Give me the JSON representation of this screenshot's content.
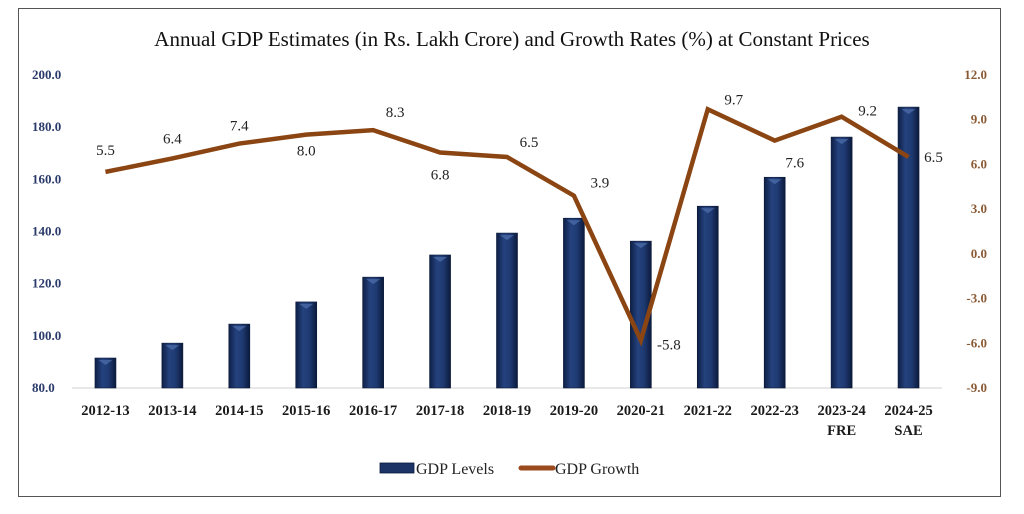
{
  "chart_data": {
    "type": "bar+line",
    "title": "Annual GDP Estimates (in Rs. Lakh Crore) and Growth Rates (%) at Constant Prices",
    "categories": [
      "2012-13",
      "2013-14",
      "2014-15",
      "2015-16",
      "2016-17",
      "2017-18",
      "2018-19",
      "2019-20",
      "2020-21",
      "2021-22",
      "2022-23",
      "2023-24\nFRE",
      "2024-25\nSAE"
    ],
    "series": [
      {
        "name": "GDP Levels",
        "type": "bar",
        "axis": "left",
        "color": "#1c3466",
        "values": [
          91.5,
          97.2,
          104.5,
          113.0,
          122.5,
          131.0,
          139.4,
          145.1,
          136.3,
          149.7,
          160.8,
          176.2,
          187.7
        ]
      },
      {
        "name": "GDP Growth",
        "type": "line",
        "axis": "right",
        "color": "#8b4513",
        "values": [
          5.5,
          6.4,
          7.4,
          8.0,
          8.3,
          6.8,
          6.5,
          3.9,
          -5.8,
          9.7,
          7.6,
          9.2,
          6.5
        ],
        "data_labels": [
          "5.5",
          "6.4",
          "7.4",
          "8.0",
          "8.3",
          "6.8",
          "6.5",
          "3.9",
          "-5.8",
          "9.7",
          "7.6",
          "9.2",
          "6.5"
        ]
      }
    ],
    "left_axis": {
      "ylim": [
        80,
        200
      ],
      "ticks": [
        "80.0",
        "100.0",
        "120.0",
        "140.0",
        "160.0",
        "180.0",
        "200.0"
      ],
      "color": "#2a3a6a"
    },
    "right_axis": {
      "ylim": [
        -9,
        12
      ],
      "ticks": [
        "-9.0",
        "-6.0",
        "-3.0",
        "0.0",
        "3.0",
        "6.0",
        "9.0",
        "12.0"
      ],
      "color": "#8a5a35"
    },
    "xlabel": "",
    "ylabel": "",
    "grid": false,
    "legend": {
      "position": "bottom-center",
      "entries": [
        "GDP Levels",
        "GDP Growth"
      ]
    }
  }
}
